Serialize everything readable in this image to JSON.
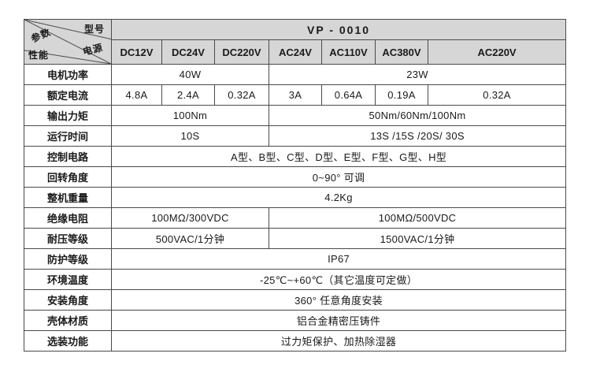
{
  "page": {
    "background": "#ffffff",
    "header_fill": "#d6d6d6",
    "border_color": "#4a4a4a",
    "text_color": "#1a1a1a"
  },
  "header": {
    "corner": {
      "model_label": "型号",
      "power_label": "电源",
      "param_label": "参数",
      "perf_label": "性能"
    },
    "model": "VP - 0010",
    "voltages": [
      "DC12V",
      "DC24V",
      "DC220V",
      "AC24V",
      "AC110V",
      "AC380V",
      "AC220V"
    ]
  },
  "rows": [
    {
      "label": "电机功率",
      "cells": [
        {
          "span": 3,
          "text": "40W"
        },
        {
          "span": 4,
          "text": "23W"
        }
      ]
    },
    {
      "label": "额定电流",
      "cells": [
        {
          "span": 1,
          "text": "4.8A"
        },
        {
          "span": 1,
          "text": "2.4A"
        },
        {
          "span": 1,
          "text": "0.32A"
        },
        {
          "span": 1,
          "text": "3A"
        },
        {
          "span": 1,
          "text": "0.64A"
        },
        {
          "span": 1,
          "text": "0.19A"
        },
        {
          "span": 1,
          "text": "0.32A"
        }
      ]
    },
    {
      "label": "输出力矩",
      "cells": [
        {
          "span": 3,
          "text": "100Nm"
        },
        {
          "span": 4,
          "text": "50Nm/60Nm/100Nm"
        }
      ]
    },
    {
      "label": "运行时间",
      "cells": [
        {
          "span": 3,
          "text": "10S"
        },
        {
          "span": 4,
          "text": "13S /15S /20S/ 30S"
        }
      ]
    },
    {
      "label": "控制电路",
      "cells": [
        {
          "span": 7,
          "text": "A型、B型、C型、D型、E型、F型、G型、H型"
        }
      ]
    },
    {
      "label": "回转角度",
      "cells": [
        {
          "span": 7,
          "text": "0~90° 可调"
        }
      ]
    },
    {
      "label": "整机重量",
      "cells": [
        {
          "span": 7,
          "text": "4.2Kg"
        }
      ]
    },
    {
      "label": "绝缘电阻",
      "cells": [
        {
          "span": 3,
          "text": "100MΩ/300VDC"
        },
        {
          "span": 4,
          "text": "100MΩ/500VDC"
        }
      ]
    },
    {
      "label": "耐压等级",
      "cells": [
        {
          "span": 3,
          "text": "500VAC/1分钟"
        },
        {
          "span": 4,
          "text": "1500VAC/1分钟"
        }
      ]
    },
    {
      "label": "防护等级",
      "cells": [
        {
          "span": 7,
          "text": "IP67"
        }
      ]
    },
    {
      "label": "环境温度",
      "cells": [
        {
          "span": 7,
          "text": "-25℃~+60℃（其它温度可定做）"
        }
      ]
    },
    {
      "label": "安装角度",
      "cells": [
        {
          "span": 7,
          "text": "360° 任意角度安装"
        }
      ]
    },
    {
      "label": "壳体材质",
      "cells": [
        {
          "span": 7,
          "text": "铝合金精密压铸件"
        }
      ]
    },
    {
      "label": "选装功能",
      "cells": [
        {
          "span": 7,
          "text": "过力矩保护、加热除湿器"
        }
      ]
    }
  ]
}
